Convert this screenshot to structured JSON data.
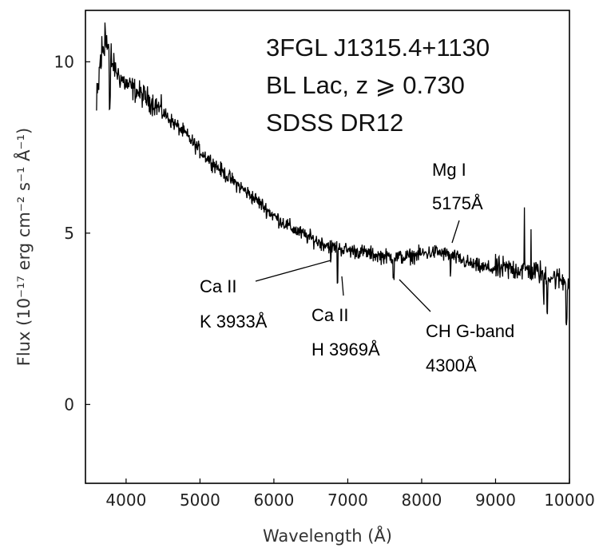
{
  "chart_data": {
    "type": "line",
    "title_lines": [
      "3FGL J1315.4+1130",
      "BL Lac, z ⩾ 0.730",
      "SDSS DR12"
    ],
    "xlabel": "Wavelength (Å)",
    "ylabel": "Flux (10⁻¹⁷ erg cm⁻² s⁻¹ Å⁻¹)",
    "xlim": [
      3450,
      10000
    ],
    "ylim": [
      -2.3,
      11.5
    ],
    "xticks": [
      4000,
      5000,
      6000,
      7000,
      8000,
      9000,
      10000
    ],
    "xtick_labels": [
      "4000",
      "5000",
      "6000",
      "7000",
      "8000",
      "9000",
      "10000"
    ],
    "yticks": [
      0,
      5,
      10
    ],
    "ytick_labels": [
      "0",
      "5",
      "10"
    ],
    "series": [
      {
        "name": "SDSS DR12 spectrum",
        "color": "#000000",
        "x": [
          3600,
          3650,
          3700,
          3750,
          3800,
          3900,
          4000,
          4200,
          4400,
          4600,
          4800,
          5000,
          5200,
          5400,
          5600,
          5800,
          6000,
          6200,
          6400,
          6600,
          6800,
          7000,
          7200,
          7400,
          7600,
          7800,
          8000,
          8200,
          8400,
          8600,
          8800,
          9000,
          9200,
          9400,
          9600,
          9800,
          10000
        ],
        "y": [
          8.5,
          10.0,
          10.4,
          10.5,
          10.0,
          9.6,
          9.35,
          9.05,
          8.75,
          8.3,
          7.9,
          7.4,
          7.0,
          6.6,
          6.25,
          5.9,
          5.5,
          5.2,
          4.95,
          4.75,
          4.6,
          4.5,
          4.45,
          4.35,
          4.3,
          4.3,
          4.4,
          4.45,
          4.35,
          4.15,
          4.0,
          3.95,
          3.95,
          3.95,
          3.85,
          3.7,
          3.55
        ]
      }
    ],
    "annotations": [
      {
        "lines": [
          "Mg I",
          "5175Å"
        ],
        "x": 8420,
        "y": 4.6
      },
      {
        "lines": [
          "Ca II",
          "K 3933Å"
        ],
        "x": 6800,
        "y": 4.3
      },
      {
        "lines": [
          "Ca II",
          "H 3969Å"
        ],
        "x": 6870,
        "y": 3.7
      },
      {
        "lines": [
          "CH G-band",
          "4300Å"
        ],
        "x": 7640,
        "y": 3.7
      }
    ]
  }
}
